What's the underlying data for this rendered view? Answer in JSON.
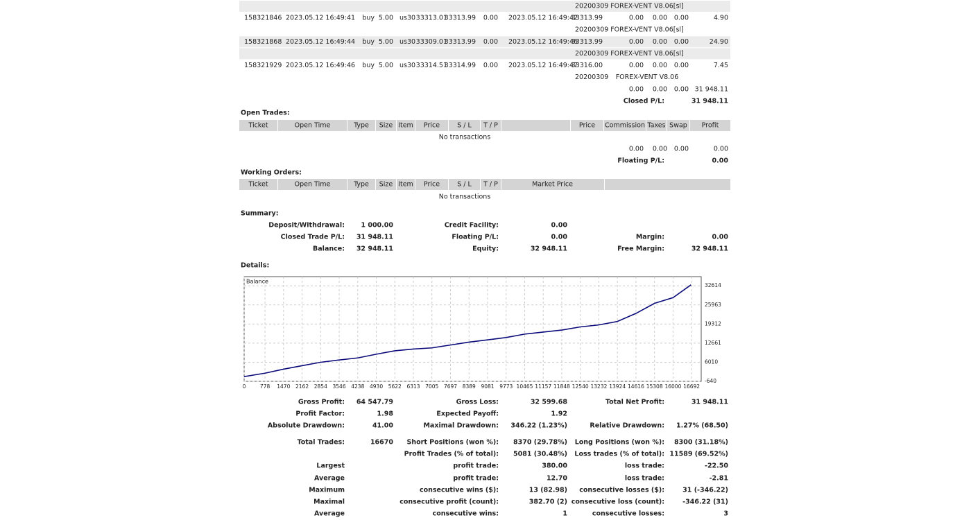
{
  "closed_trades": {
    "rows": [
      {
        "shaded": true,
        "magic": "20200309",
        "comment": "FOREX-VENT V8.06[sl]"
      },
      {
        "shaded": false,
        "cells": [
          "158321846",
          "2023.05.12 16:49:41",
          "buy",
          "5.00",
          "us30",
          "33313.01",
          "33313.99",
          "0.00",
          "2023.05.12 16:49:42",
          "33313.99",
          "0.00",
          "0.00",
          "0.00",
          "4.90"
        ]
      },
      {
        "shaded": false,
        "magic": "20200309",
        "comment": "FOREX-VENT V8.06[sl]"
      },
      {
        "shaded": true,
        "cells": [
          "158321868",
          "2023.05.12 16:49:44",
          "buy",
          "5.00",
          "us30",
          "33309.01",
          "33313.99",
          "0.00",
          "2023.05.12 16:49:46",
          "33313.99",
          "0.00",
          "0.00",
          "0.00",
          "24.90"
        ]
      },
      {
        "shaded": true,
        "magic": "20200309",
        "comment": "FOREX-VENT V8.06[sl]"
      },
      {
        "shaded": false,
        "cells": [
          "158321929",
          "2023.05.12 16:49:46",
          "buy",
          "5.00",
          "us30",
          "33314.51",
          "33314.99",
          "0.00",
          "2023.05.12 16:49:47",
          "33316.00",
          "0.00",
          "0.00",
          "0.00",
          "7.45"
        ]
      },
      {
        "shaded": false,
        "magic": "20200309",
        "comment": "FOREX-VENT V8.06"
      }
    ],
    "totals": [
      "0.00",
      "0.00",
      "0.00",
      "31 948.11"
    ],
    "pl_label": "Closed P/L:",
    "pl_value": "31 948.11"
  },
  "open_trades": {
    "title": "Open Trades:",
    "columns": [
      "Ticket",
      "Open Time",
      "Type",
      "Size",
      "Item",
      "Price",
      "S / L",
      "T / P",
      null,
      "Price",
      "Commission",
      "Taxes",
      "Swap",
      "Profit"
    ],
    "empty": "No transactions",
    "totals": [
      "0.00",
      "0.00",
      "0.00",
      "0.00"
    ],
    "pl_label": "Floating P/L:",
    "pl_value": "0.00"
  },
  "working_orders": {
    "title": "Working Orders:",
    "columns": [
      "Ticket",
      "Open Time",
      "Type",
      "Size",
      "Item",
      "Price",
      "S / L",
      "T / P",
      "Market Price"
    ],
    "empty": "No transactions"
  },
  "summary": {
    "title": "Summary:",
    "rows": [
      [
        "Deposit/Withdrawal:",
        "1 000.00",
        "Credit Facility:",
        "0.00",
        null,
        null
      ],
      [
        "Closed Trade P/L:",
        "31 948.11",
        "Floating P/L:",
        "0.00",
        "Margin:",
        "0.00"
      ],
      [
        "Balance:",
        "32 948.11",
        "Equity:",
        "32 948.11",
        "Free Margin:",
        "32 948.11"
      ]
    ]
  },
  "details": {
    "title": "Details:",
    "chart": {
      "type": "line",
      "label": "Balance",
      "color": "#0a0a7a",
      "x": [
        0,
        778,
        1470,
        2162,
        2854,
        3546,
        4238,
        4930,
        5622,
        6313,
        7005,
        7697,
        8389,
        9081,
        9773,
        10465,
        11157,
        11848,
        12540,
        13232,
        13924,
        14616,
        15308,
        16000,
        16670
      ],
      "values": [
        1000,
        2200,
        3600,
        4800,
        6000,
        6800,
        7500,
        8800,
        10000,
        10600,
        11000,
        12000,
        13000,
        13800,
        14600,
        15800,
        16500,
        17200,
        18300,
        19000,
        20200,
        23000,
        26500,
        28500,
        32948
      ],
      "xlim": [
        0,
        17050
      ],
      "ylim": [
        -640,
        35800
      ],
      "xticks": [
        0,
        778,
        1470,
        2162,
        2854,
        3546,
        4238,
        4930,
        5622,
        6313,
        7005,
        7697,
        8389,
        9081,
        9773,
        10465,
        11157,
        11848,
        12540,
        13232,
        13924,
        14616,
        15308,
        16000,
        16692
      ],
      "yticks": [
        -640,
        6010,
        12661,
        19312,
        25963,
        32614
      ],
      "grid": true
    }
  },
  "stats": {
    "rows": [
      [
        "Gross Profit:",
        "64 547.79",
        "Gross Loss:",
        "32 599.68",
        "Total Net Profit:",
        "31 948.11"
      ],
      [
        "Profit Factor:",
        "1.98",
        "Expected Payoff:",
        "1.92",
        null,
        null
      ],
      [
        "Absolute Drawdown:",
        "41.00",
        "Maximal Drawdown:",
        "346.22 (1.23%)",
        "Relative Drawdown:",
        "1.27% (68.50)"
      ],
      [
        "Total Trades:",
        "16670",
        "Short Positions (won %):",
        "8370 (29.78%)",
        "Long Positions (won %):",
        "8300 (31.18%)"
      ],
      [
        null,
        null,
        "Profit Trades (% of total):",
        "5081 (30.48%)",
        "Loss trades (% of total):",
        "11589 (69.52%)"
      ],
      [
        "Largest",
        null,
        "profit trade:",
        "380.00",
        "loss trade:",
        "-22.50"
      ],
      [
        "Average",
        null,
        "profit trade:",
        "12.70",
        "loss trade:",
        "-2.81"
      ],
      [
        "Maximum",
        null,
        "consecutive wins ($):",
        "13 (82.98)",
        "consecutive losses ($):",
        "31 (-346.22)"
      ],
      [
        "Maximal",
        null,
        "consecutive profit (count):",
        "382.70 (2)",
        "consecutive loss (count):",
        "-346.22 (31)"
      ],
      [
        "Average",
        null,
        "consecutive wins:",
        "1",
        "consecutive losses:",
        "3"
      ]
    ]
  }
}
